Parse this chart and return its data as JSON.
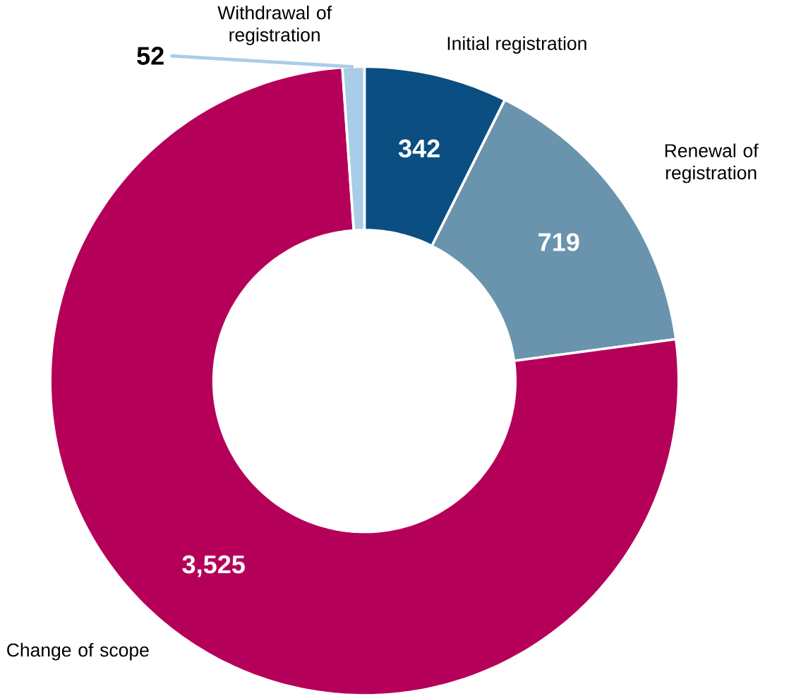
{
  "chart_data": {
    "type": "donut",
    "categories": [
      "Initial registration",
      "Renewal of registration",
      "Change of scope",
      "Withdrawal of registration"
    ],
    "values": [
      342,
      719,
      3525,
      52
    ],
    "value_labels": [
      "342",
      "719",
      "3,525",
      "52"
    ],
    "colors": [
      "#0b4f82",
      "#6a93ad",
      "#b5005a",
      "#a9cde8"
    ]
  }
}
